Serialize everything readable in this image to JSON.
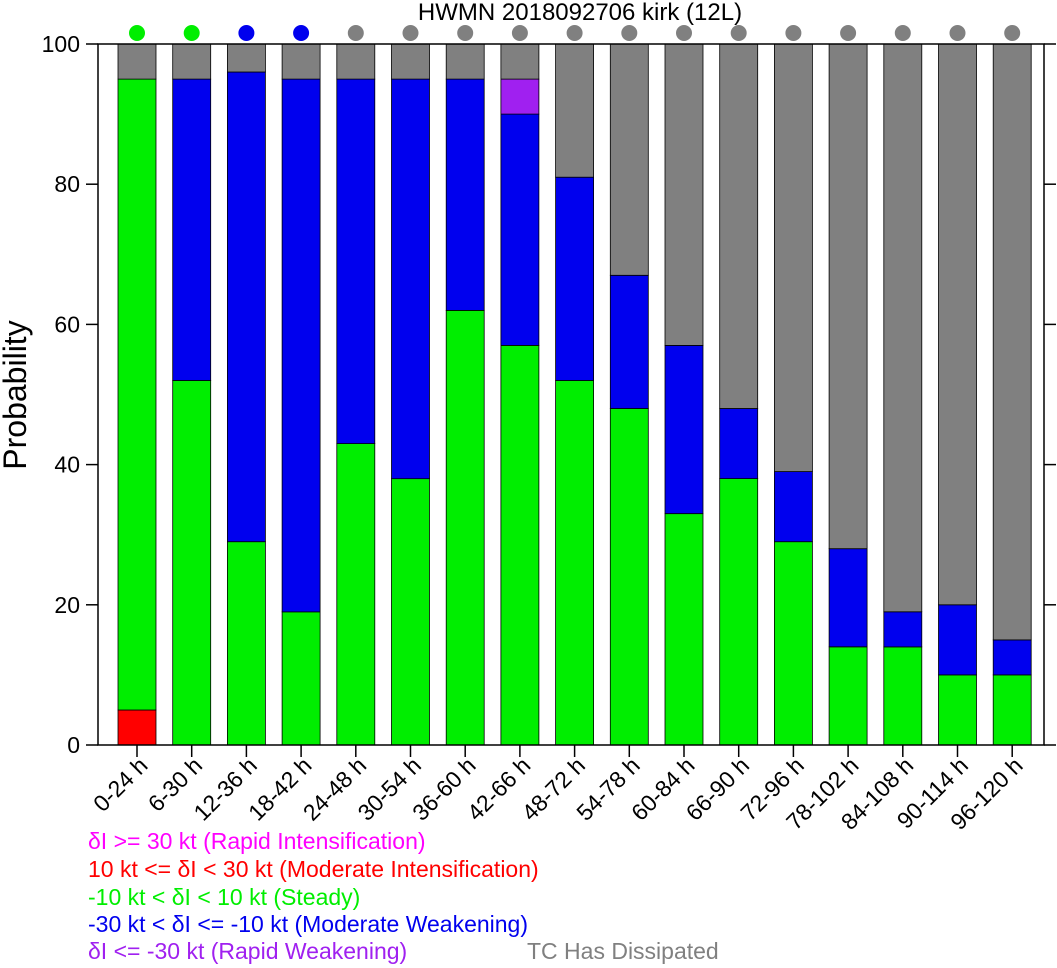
{
  "chart_data": {
    "type": "bar",
    "stacked": true,
    "title": "HWMN 2018092706 kirk (12L)",
    "xlabel": "",
    "ylabel": "Probability",
    "ylim": [
      0,
      100
    ],
    "yticks": [
      0,
      20,
      40,
      60,
      80,
      100
    ],
    "categories": [
      "0-24 h",
      "6-30 h",
      "12-36 h",
      "18-42 h",
      "24-48 h",
      "30-54 h",
      "36-60 h",
      "42-66 h",
      "48-72 h",
      "54-78 h",
      "60-84 h",
      "66-90 h",
      "72-96 h",
      "78-102 h",
      "84-108 h",
      "90-114 h",
      "96-120 h"
    ],
    "series": [
      {
        "name": "δI >= 30 kt (Rapid Intensification)",
        "color": "#ff00ff",
        "values": [
          0,
          0,
          0,
          0,
          0,
          0,
          0,
          0,
          0,
          0,
          0,
          0,
          0,
          0,
          0,
          0,
          0
        ]
      },
      {
        "name": "10 kt <= δI < 30 kt (Moderate Intensification)",
        "color": "#ff0000",
        "values": [
          5,
          0,
          0,
          0,
          0,
          0,
          0,
          0,
          0,
          0,
          0,
          0,
          0,
          0,
          0,
          0,
          0
        ]
      },
      {
        "name": "-10 kt < δI < 10 kt (Steady)",
        "color": "#00ee00",
        "values": [
          90,
          52,
          29,
          19,
          43,
          38,
          62,
          57,
          52,
          48,
          33,
          38,
          29,
          14,
          14,
          10,
          10
        ]
      },
      {
        "name": "-30 kt < δI <= -10 kt (Moderate Weakening)",
        "color": "#0000ee",
        "values": [
          0,
          43,
          67,
          76,
          52,
          57,
          33,
          33,
          29,
          19,
          24,
          10,
          10,
          14,
          5,
          10,
          5
        ]
      },
      {
        "name": "δI <= -30 kt (Rapid Weakening)",
        "color": "#a020f0",
        "values": [
          0,
          0,
          0,
          0,
          0,
          0,
          0,
          5,
          0,
          0,
          0,
          0,
          0,
          0,
          0,
          0,
          0
        ]
      },
      {
        "name": "TC Has Dissipated",
        "color": "#808080",
        "values": [
          5,
          5,
          4,
          5,
          5,
          5,
          5,
          5,
          19,
          33,
          43,
          52,
          61,
          72,
          81,
          80,
          85
        ]
      }
    ],
    "category_dot_colors": [
      "#00ee00",
      "#00ee00",
      "#0000ee",
      "#0000ee",
      "#808080",
      "#808080",
      "#808080",
      "#808080",
      "#808080",
      "#808080",
      "#808080",
      "#808080",
      "#808080",
      "#808080",
      "#808080",
      "#808080",
      "#808080"
    ],
    "grid": false,
    "legend_position": "bottom-left"
  },
  "legend": {
    "rapid_intensification": "δI >= 30 kt (Rapid Intensification)",
    "moderate_intensification": "10 kt <= δI < 30 kt (Moderate Intensification)",
    "steady": "-10 kt < δI < 10 kt (Steady)",
    "moderate_weakening": "-30 kt < δI <= -10 kt (Moderate Weakening)",
    "rapid_weakening": "δI <= -30 kt (Rapid Weakening)",
    "dissipated": "TC Has Dissipated"
  }
}
